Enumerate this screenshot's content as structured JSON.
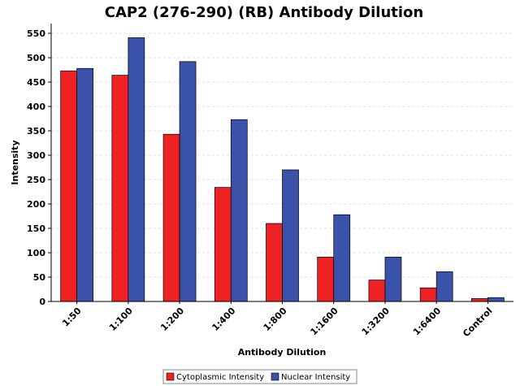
{
  "chart_data": {
    "type": "bar",
    "title": "CAP2 (276-290) (RB) Antibody Dilution",
    "xlabel": "Antibody Dilution",
    "ylabel": "Intensity",
    "categories": [
      "1:50",
      "1:100",
      "1:200",
      "1:400",
      "1:800",
      "1:1600",
      "1:3200",
      "1:6400",
      "Control"
    ],
    "series": [
      {
        "name": "Cytoplasmic Intensity",
        "color": "#ee2222",
        "values": [
          473,
          464,
          343,
          234,
          160,
          91,
          44,
          28,
          6
        ]
      },
      {
        "name": "Nuclear Intensity",
        "color": "#3a52a8",
        "values": [
          478,
          541,
          492,
          373,
          270,
          178,
          91,
          61,
          8
        ]
      }
    ],
    "ylim": [
      0,
      570
    ],
    "yticks": [
      0,
      50,
      100,
      150,
      200,
      250,
      300,
      350,
      400,
      450,
      500,
      550
    ],
    "grid": true,
    "legend": "bottom-center"
  }
}
